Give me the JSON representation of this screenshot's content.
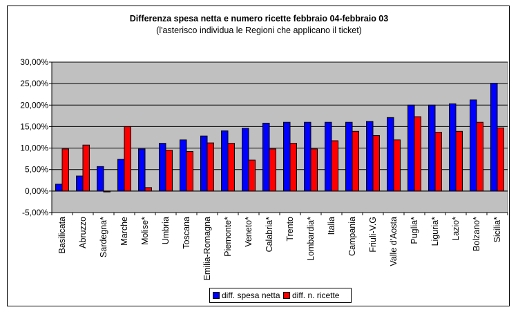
{
  "chart_data": {
    "type": "bar",
    "title": "Differenza spesa netta e numero ricette febbraio 04-febbraio 03",
    "subtitle": "(l'asterisco individua le Regioni che applicano il ticket)",
    "categories": [
      "Basilicata",
      "Abruzzo",
      "Sardegna*",
      "Marche",
      "Molise*",
      "Umbria",
      "Toscana",
      "Emilia-Romagna",
      "Piemonte*",
      "Veneto*",
      "Calabria*",
      "Trento",
      "Lombardia*",
      "Italia",
      "Campania",
      "Friuli-V.G",
      "Valle d'Aosta",
      "Puglia*",
      "Liguria*",
      "Lazio*",
      "Bolzano*",
      "Sicilia*"
    ],
    "series": [
      {
        "name": "diff. spesa netta",
        "color": "#0000ff",
        "values": [
          1.6,
          3.5,
          5.7,
          7.4,
          9.8,
          11.1,
          11.9,
          12.8,
          14.0,
          14.6,
          15.8,
          16.0,
          16.0,
          16.0,
          16.0,
          16.2,
          17.1,
          20.0,
          20.0,
          20.3,
          21.2,
          25.1
        ]
      },
      {
        "name": "diff. n. ricette",
        "color": "#ff0000",
        "values": [
          9.8,
          10.7,
          -0.2,
          15.0,
          0.8,
          9.5,
          9.2,
          11.2,
          11.1,
          7.2,
          9.8,
          11.1,
          9.8,
          11.7,
          13.9,
          12.9,
          11.9,
          17.3,
          13.7,
          13.9,
          16.0,
          14.7
        ]
      }
    ],
    "ylim": [
      -5,
      30
    ],
    "yticks": [
      "-5,00%",
      "0,00%",
      "5,00%",
      "10,00%",
      "15,00%",
      "20,00%",
      "25,00%",
      "30,00%"
    ],
    "grid": true,
    "legend_position": "bottom",
    "plot_background": "#c0c0c0"
  }
}
